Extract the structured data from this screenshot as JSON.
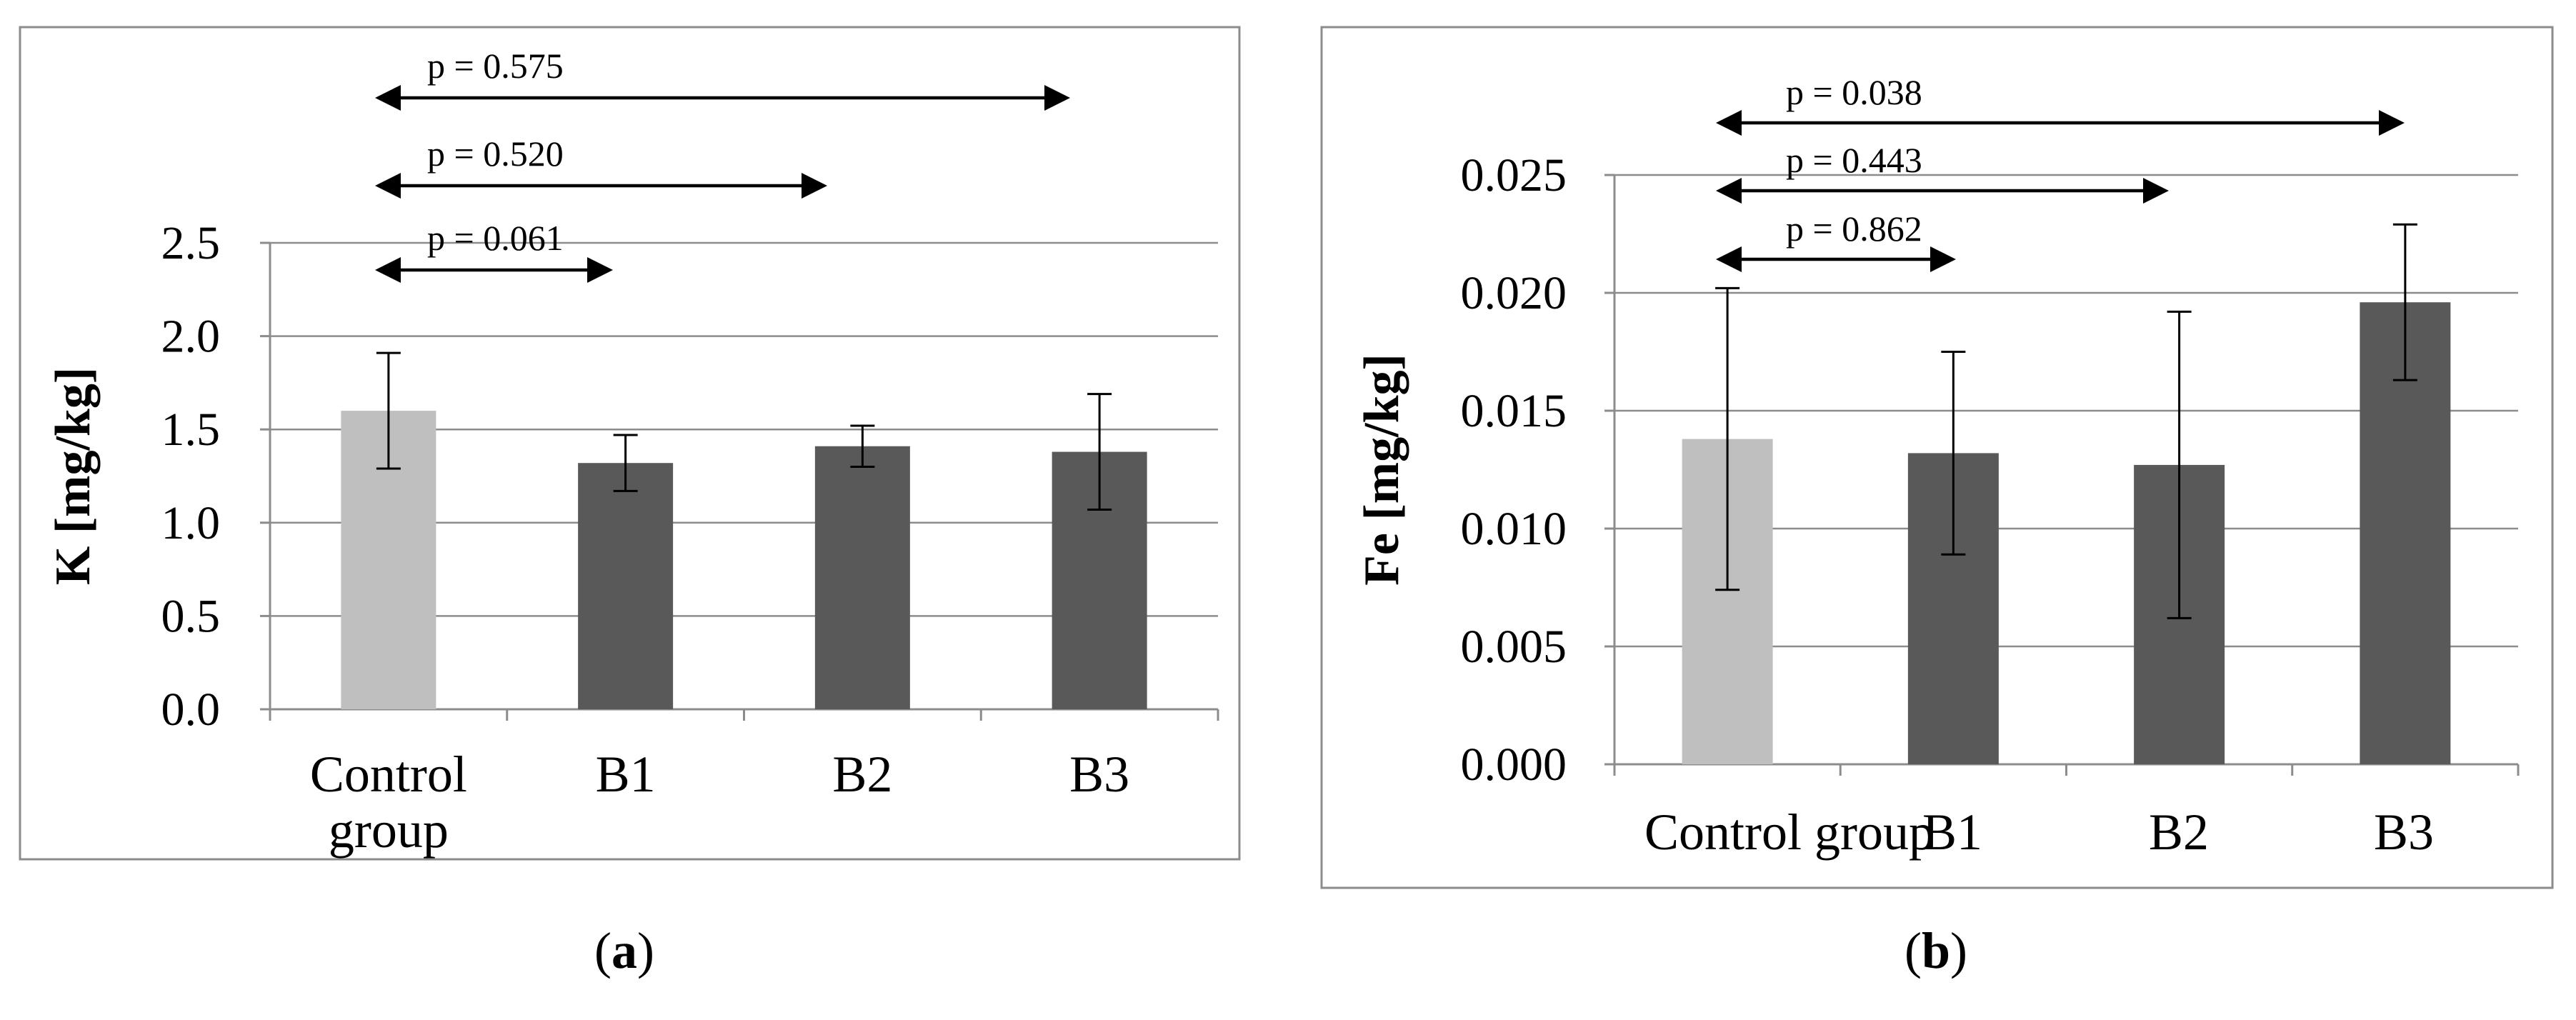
{
  "chart_data": [
    {
      "type": "bar",
      "panel_label": "a",
      "ylabel": "K [mg/kg]",
      "xlabel": "",
      "categories": [
        "Control group",
        "B1",
        "B2",
        "B3"
      ],
      "category_lines": [
        [
          "Control",
          "group"
        ],
        [
          "B1"
        ],
        [
          "B2"
        ],
        [
          "B3"
        ]
      ],
      "values": [
        1.6,
        1.32,
        1.41,
        1.38
      ],
      "errors": [
        0.31,
        0.15,
        0.11,
        0.31
      ],
      "colors": [
        "#bfbfbf",
        "#595959",
        "#595959",
        "#595959"
      ],
      "ylim": [
        0,
        2.5
      ],
      "yticks": [
        "0.0",
        "0.5",
        "1.0",
        "1.5",
        "2.0",
        "2.5"
      ],
      "ytick_values": [
        0,
        0.5,
        1.0,
        1.5,
        2.0,
        2.5
      ],
      "grid": true,
      "comparisons": [
        {
          "from": "Control group",
          "to": "B1",
          "label": "p = 0.061"
        },
        {
          "from": "Control group",
          "to": "B2",
          "label": "p = 0.520"
        },
        {
          "from": "Control group",
          "to": "B3",
          "label": "p = 0.575"
        }
      ]
    },
    {
      "type": "bar",
      "panel_label": "b",
      "ylabel": "Fe [mg/kg]",
      "xlabel": "",
      "categories": [
        "Control group",
        "B1",
        "B2",
        "B3"
      ],
      "category_lines": [
        [
          "Control group"
        ],
        [
          "B1"
        ],
        [
          "B2"
        ],
        [
          "B3"
        ]
      ],
      "values": [
        0.0138,
        0.0132,
        0.0127,
        0.0196
      ],
      "errors": [
        0.0064,
        0.0043,
        0.0065,
        0.0033
      ],
      "colors": [
        "#bfbfbf",
        "#595959",
        "#595959",
        "#595959"
      ],
      "ylim": [
        0,
        0.025
      ],
      "yticks": [
        "0.000",
        "0.005",
        "0.010",
        "0.015",
        "0.020",
        "0.025"
      ],
      "ytick_values": [
        0,
        0.005,
        0.01,
        0.015,
        0.02,
        0.025
      ],
      "grid": true,
      "comparisons": [
        {
          "from": "Control group",
          "to": "B1",
          "label": "p = 0.862"
        },
        {
          "from": "Control group",
          "to": "B2",
          "label": "p = 0.443"
        },
        {
          "from": "Control group",
          "to": "B3",
          "label": "p = 0.038"
        }
      ]
    }
  ]
}
